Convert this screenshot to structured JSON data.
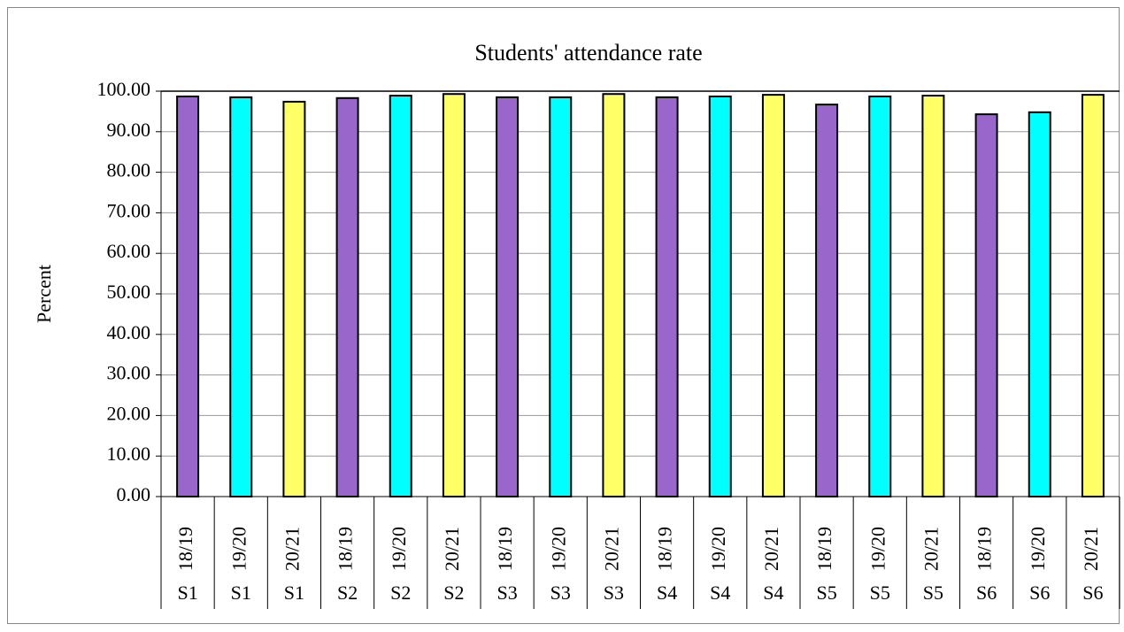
{
  "chart_data": {
    "type": "bar",
    "title": "Students' attendance rate",
    "y_label": "Percent",
    "categories": [
      "18/19",
      "19/20",
      "20/21",
      "18/19",
      "19/20",
      "20/21",
      "18/19",
      "19/20",
      "20/21",
      "18/19",
      "19/20",
      "20/21",
      "18/19",
      "19/20",
      "20/21",
      "18/19",
      "19/20",
      "20/21"
    ],
    "category_groups": [
      "S1",
      "S1",
      "S1",
      "S2",
      "S2",
      "S2",
      "S3",
      "S3",
      "S3",
      "S4",
      "S4",
      "S4",
      "S5",
      "S5",
      "S5",
      "S6",
      "S6",
      "S6"
    ],
    "values": [
      98.7,
      98.5,
      97.4,
      98.3,
      98.9,
      99.3,
      98.5,
      98.5,
      99.3,
      98.5,
      98.7,
      99.1,
      96.7,
      98.7,
      98.9,
      94.3,
      94.8,
      99.1
    ],
    "colors": [
      "#9966cc",
      "#00ffff",
      "#ffff66",
      "#9966cc",
      "#00ffff",
      "#ffff66",
      "#9966cc",
      "#00ffff",
      "#ffff66",
      "#9966cc",
      "#00ffff",
      "#ffff66",
      "#9966cc",
      "#00ffff",
      "#ffff66",
      "#9966cc",
      "#00ffff",
      "#ffff66"
    ],
    "ylim": [
      0,
      100
    ],
    "yticks": [
      {
        "value": 0,
        "label": "0.00"
      },
      {
        "value": 10,
        "label": "10.00"
      },
      {
        "value": 20,
        "label": "20.00"
      },
      {
        "value": 30,
        "label": "30.00"
      },
      {
        "value": 40,
        "label": "40.00"
      },
      {
        "value": 50,
        "label": "50.00"
      },
      {
        "value": 60,
        "label": "60.00"
      },
      {
        "value": 70,
        "label": "70.00"
      },
      {
        "value": 80,
        "label": "80.00"
      },
      {
        "value": 90,
        "label": "90.00"
      },
      {
        "value": 100,
        "label": "100.00"
      }
    ],
    "grid": true
  }
}
